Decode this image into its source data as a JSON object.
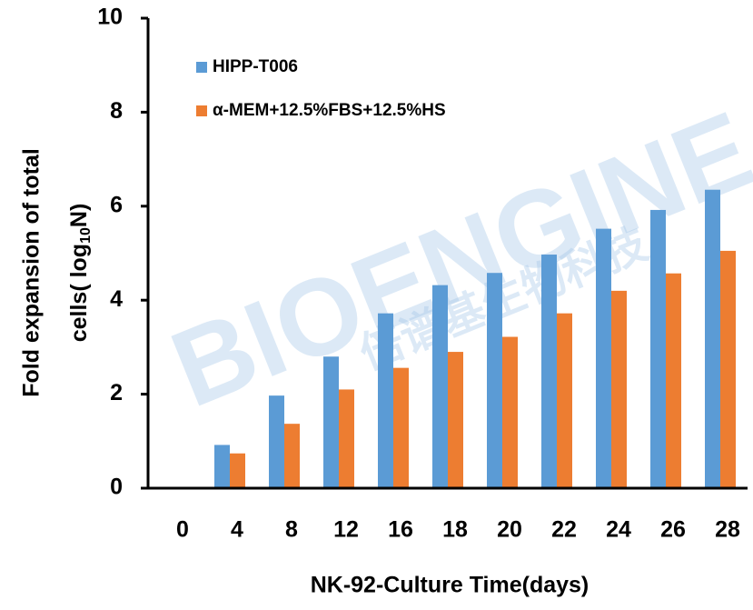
{
  "chart_data": {
    "type": "bar",
    "categories": [
      "0",
      "4",
      "8",
      "12",
      "16",
      "18",
      "20",
      "22",
      "24",
      "26",
      "28"
    ],
    "series": [
      {
        "name": "HIPP-T006",
        "color": "#5b9bd5",
        "values": [
          0,
          0.92,
          1.97,
          2.8,
          3.72,
          4.32,
          4.58,
          4.97,
          5.52,
          5.92,
          6.35
        ]
      },
      {
        "name": "α-MEM+12.5%FBS+12.5%HS",
        "color": "#ed7d31",
        "values": [
          0,
          0.74,
          1.37,
          2.1,
          2.56,
          2.9,
          3.22,
          3.72,
          4.2,
          4.57,
          5.05
        ]
      }
    ],
    "ylim": [
      0,
      10
    ],
    "yticks": [
      0,
      2,
      4,
      6,
      8,
      10
    ],
    "xlabel": "NK-92-Culture Time(days)",
    "ylabel": {
      "line1": "Fold expansion of total",
      "line2_start": "cells( log",
      "subscript": "10",
      "line2_end": "N)"
    },
    "watermark": [
      "BIOENGINE",
      "倍谱基生物科技"
    ],
    "legend": "upper left"
  }
}
